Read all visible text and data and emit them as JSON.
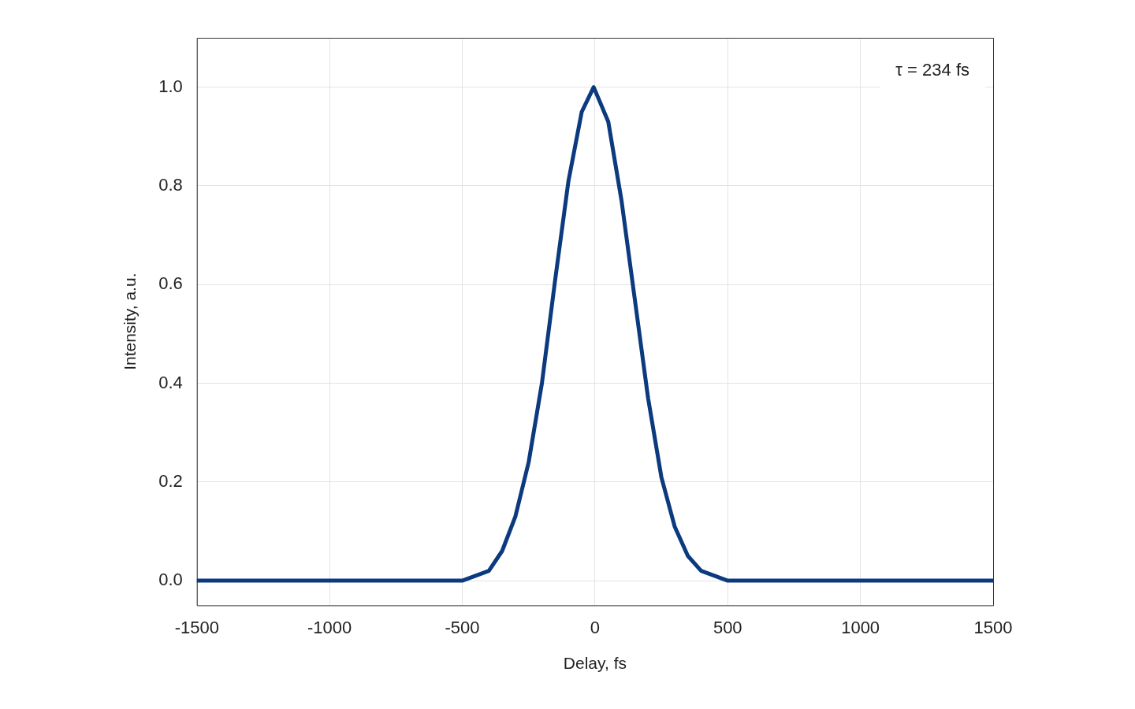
{
  "chart_data": {
    "type": "line",
    "xlabel": "Delay, fs",
    "ylabel": "Intensity, a.u.",
    "annotations": [
      "τ = 234 fs"
    ],
    "x": [
      -1500,
      -1000,
      -600,
      -500,
      -450,
      -400,
      -350,
      -300,
      -250,
      -200,
      -150,
      -100,
      -50,
      -5,
      50,
      100,
      150,
      200,
      250,
      300,
      350,
      400,
      450,
      500,
      600,
      1000,
      1500
    ],
    "series": [
      {
        "color": "#0b3a7e",
        "values": [
          0,
          0,
          0,
          0.0,
          0.01,
          0.02,
          0.06,
          0.13,
          0.24,
          0.4,
          0.61,
          0.81,
          0.95,
          1.0,
          0.93,
          0.77,
          0.57,
          0.37,
          0.21,
          0.11,
          0.05,
          0.02,
          0.01,
          0.0,
          0,
          0,
          0
        ]
      }
    ],
    "xlim": [
      -1500,
      1500
    ],
    "xticks": [
      -1500,
      -1000,
      -500,
      0,
      500,
      1000,
      1500
    ],
    "ylim": [
      -0.05,
      1.1
    ],
    "yticks": [
      {
        "value": 0,
        "label": "0.0"
      },
      {
        "value": 0.2,
        "label": "0.2"
      },
      {
        "value": 0.4,
        "label": "0.4"
      },
      {
        "value": 0.6,
        "label": "0.6"
      },
      {
        "value": 0.8,
        "label": "0.8"
      },
      {
        "value": 1,
        "label": "1.0"
      }
    ],
    "grid": true,
    "legend": false,
    "marker": "none",
    "line_style": "solid"
  }
}
